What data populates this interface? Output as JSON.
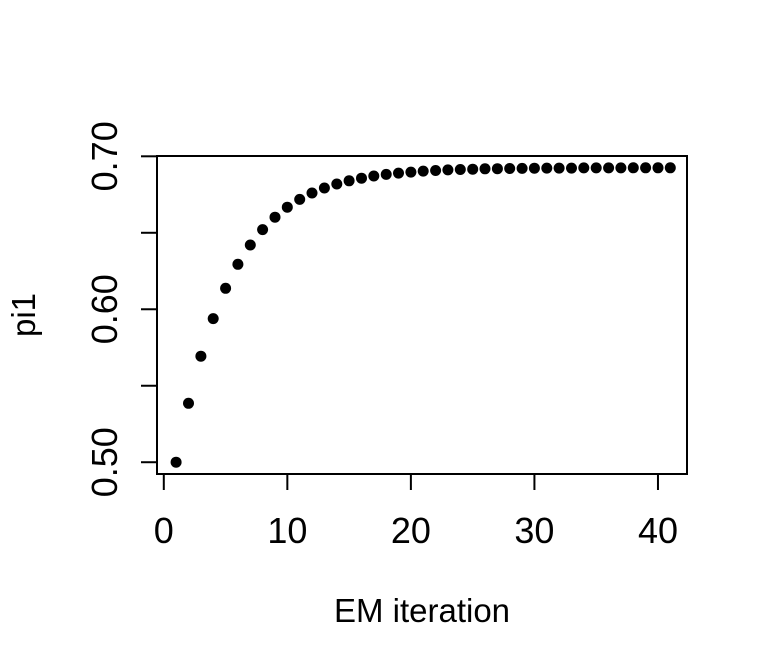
{
  "figure": {
    "background": "#ffffff",
    "foreground": "#000000"
  },
  "chart_data": {
    "type": "scatter",
    "title": "",
    "xlabel": "EM iteration",
    "ylabel": "pi1",
    "x": [
      1,
      2,
      3,
      4,
      5,
      6,
      7,
      8,
      9,
      10,
      11,
      12,
      13,
      14,
      15,
      16,
      17,
      18,
      19,
      20,
      21,
      22,
      23,
      24,
      25,
      26,
      27,
      28,
      29,
      30,
      31,
      32,
      33,
      34,
      35,
      36,
      37,
      38,
      39,
      40,
      41
    ],
    "y": [
      0.5,
      0.5385,
      0.5693,
      0.5939,
      0.6137,
      0.6294,
      0.642,
      0.6521,
      0.6602,
      0.6667,
      0.6718,
      0.676,
      0.6793,
      0.6819,
      0.684,
      0.6857,
      0.6871,
      0.6882,
      0.689,
      0.6897,
      0.6903,
      0.6907,
      0.6911,
      0.6914,
      0.6916,
      0.6918,
      0.6919,
      0.692,
      0.6921,
      0.6922,
      0.6923,
      0.6923,
      0.6923,
      0.6924,
      0.6924,
      0.6924,
      0.6924,
      0.6925,
      0.6925,
      0.6925,
      0.6925
    ],
    "xlim": [
      -0.55,
      42.35
    ],
    "ylim": [
      0.4923,
      0.7002
    ],
    "xticks": {
      "values": [
        0,
        10,
        20,
        30,
        40
      ],
      "labels": [
        "0",
        "10",
        "20",
        "30",
        "40"
      ]
    },
    "yticks": {
      "values": [
        0.5,
        0.55,
        0.6,
        0.65,
        0.7
      ],
      "labels": [
        "0.50",
        "",
        "0.60",
        "",
        "0.70"
      ]
    },
    "grid": false,
    "legend": null,
    "marker": {
      "shape": "filled-circle",
      "color": "#000000"
    }
  }
}
